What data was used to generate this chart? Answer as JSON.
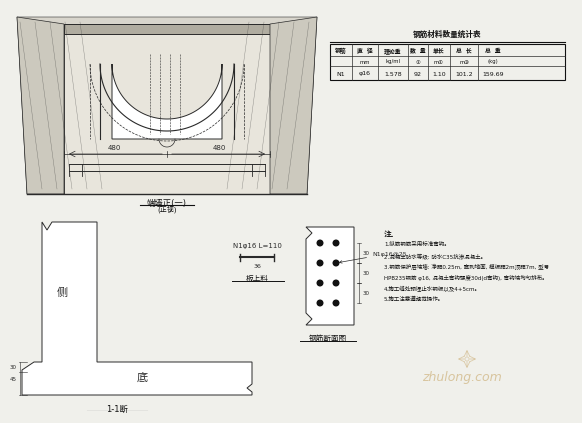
{
  "bg_color": "#f0f0eb",
  "table_title": "钢筋材料数量统计表",
  "table_col1": "钢筋",
  "table_col2_l1": "直  径",
  "table_col2_l2": "mm",
  "table_col3_l1": "理论重",
  "table_col3_l2": "kg/ml",
  "table_col4_l1": "数  量",
  "table_col4_l2": "①",
  "table_col5_l1": "单长",
  "table_col5_l2": "m①",
  "table_col6_l1": "总  长",
  "table_col6_l2": "m③",
  "table_col7_l1": "总  重",
  "table_col7_l2": "(kg)",
  "table_data": [
    "N1",
    "φ16",
    "1.578",
    "92",
    "1.10",
    "101.2",
    "159.69"
  ],
  "top_label": "端墙正(一)",
  "top_sublabel": "(正视)",
  "section_label_main": "1-1断",
  "bar_label1": "N1φ16 L=110",
  "bar_width_label": "36",
  "bar_label2": "板上料",
  "section_rebar_label": "N1φ16@25",
  "section_title": "钢筋断面图",
  "dim1": "480",
  "dim2": "480",
  "note_title": "注.",
  "note1": "1.纵筋钢筋采用标准弯钩。",
  "note2": "2.混凝土防水等级: 防水C35抗渗混凝土。",
  "note3": "3.钢筋保护层端墙: 净距0.25m, 直到地面, 模板距2m顶距7m, 型号",
  "note3b": "HPB235钢筋 φ16, 混凝土弯钩强度30d(d弯钩), 弯钩端均匀排布。",
  "note4": "4.施工缝处预埋止水钢板以及4+5cm。",
  "note5": "5.施工注意遵规范操作。",
  "watermark": "zhulong.com",
  "dim_left": "30",
  "dim_left2": "45",
  "sec_dim1": "30",
  "sec_dim2": "30",
  "sec_dim3": "30"
}
